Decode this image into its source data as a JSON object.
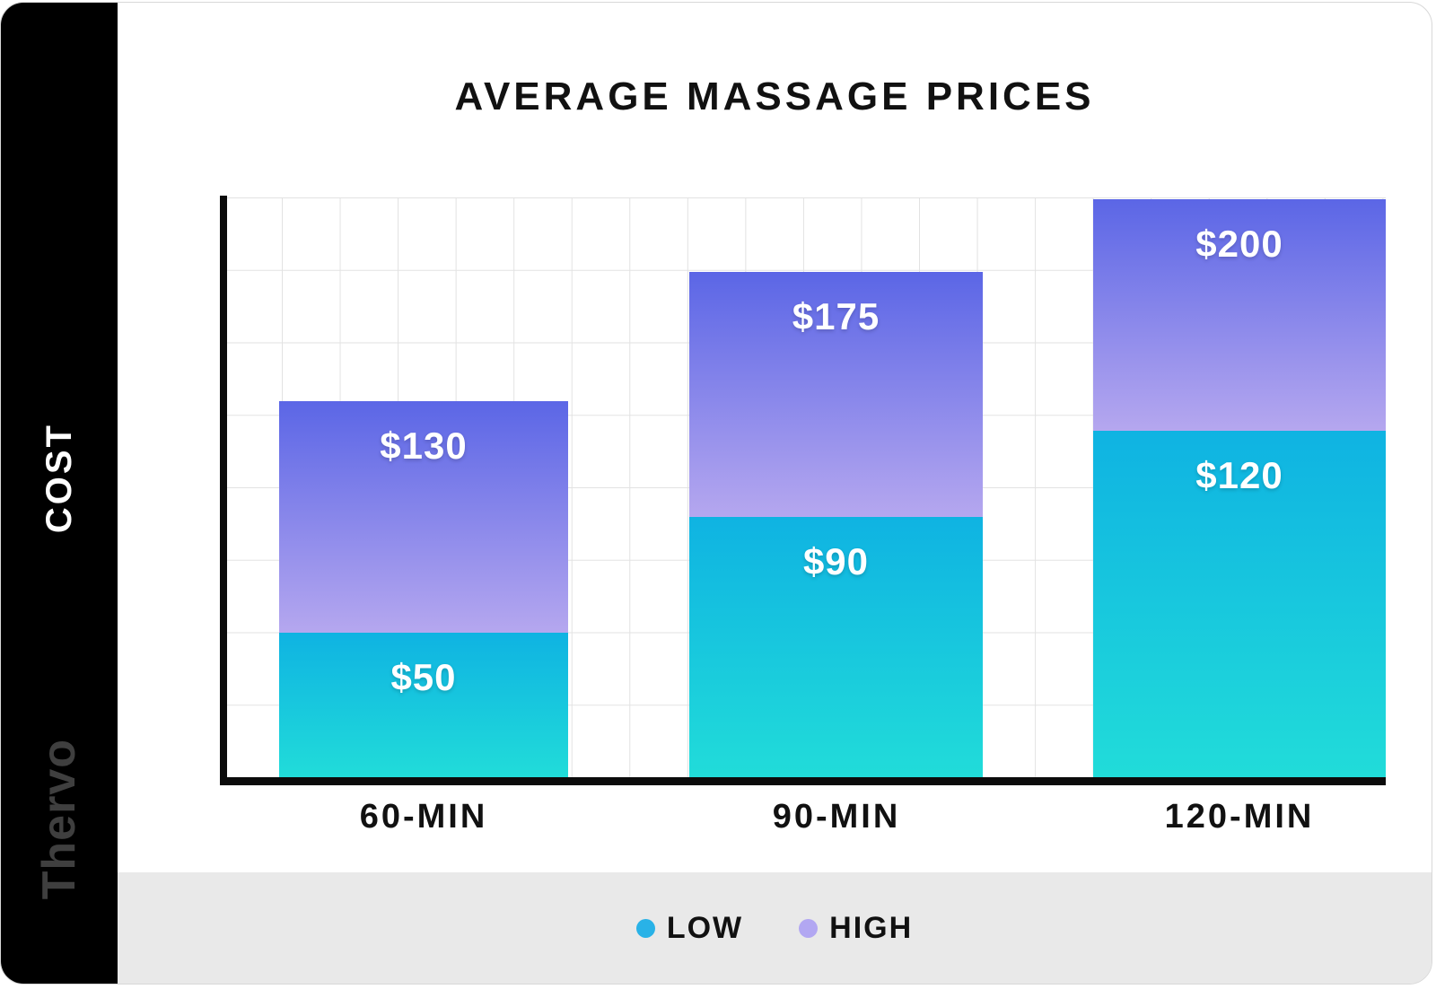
{
  "sidebar": {
    "axis_label": "COST",
    "brand": "Thervo"
  },
  "header": {
    "title": "AVERAGE MASSAGE PRICES"
  },
  "legend": {
    "items": [
      {
        "label": "LOW",
        "color": "#29b2e7"
      },
      {
        "label": "HIGH",
        "color": "#b2a7f2"
      }
    ]
  },
  "colors": {
    "high_top": "#5b66e6",
    "high_bottom": "#b5a7ef",
    "low_top": "#0fb3e2",
    "low_bottom": "#21dcd9",
    "sidebar_bg": "#000000",
    "footer_bg": "#e9e9e9",
    "grid_line": "#e2e2e2",
    "axis_line": "#0b0b0b",
    "title_color": "#111111",
    "brand_color": "#3f3f3f"
  },
  "chart_data": {
    "type": "bar",
    "stacked": true,
    "title": "AVERAGE MASSAGE PRICES",
    "ylabel": "COST",
    "xlabel": "",
    "categories": [
      "60-MIN",
      "90-MIN",
      "120-MIN"
    ],
    "series": [
      {
        "name": "LOW",
        "values": [
          50,
          90,
          120
        ]
      },
      {
        "name": "HIGH",
        "values": [
          130,
          175,
          200
        ]
      }
    ],
    "value_labels": {
      "low": [
        "$50",
        "$90",
        "$120"
      ],
      "high": [
        "$130",
        "$175",
        "$200"
      ]
    },
    "ylim": [
      0,
      200
    ],
    "ymax": 200,
    "grid": true,
    "legend_position": "bottom"
  }
}
